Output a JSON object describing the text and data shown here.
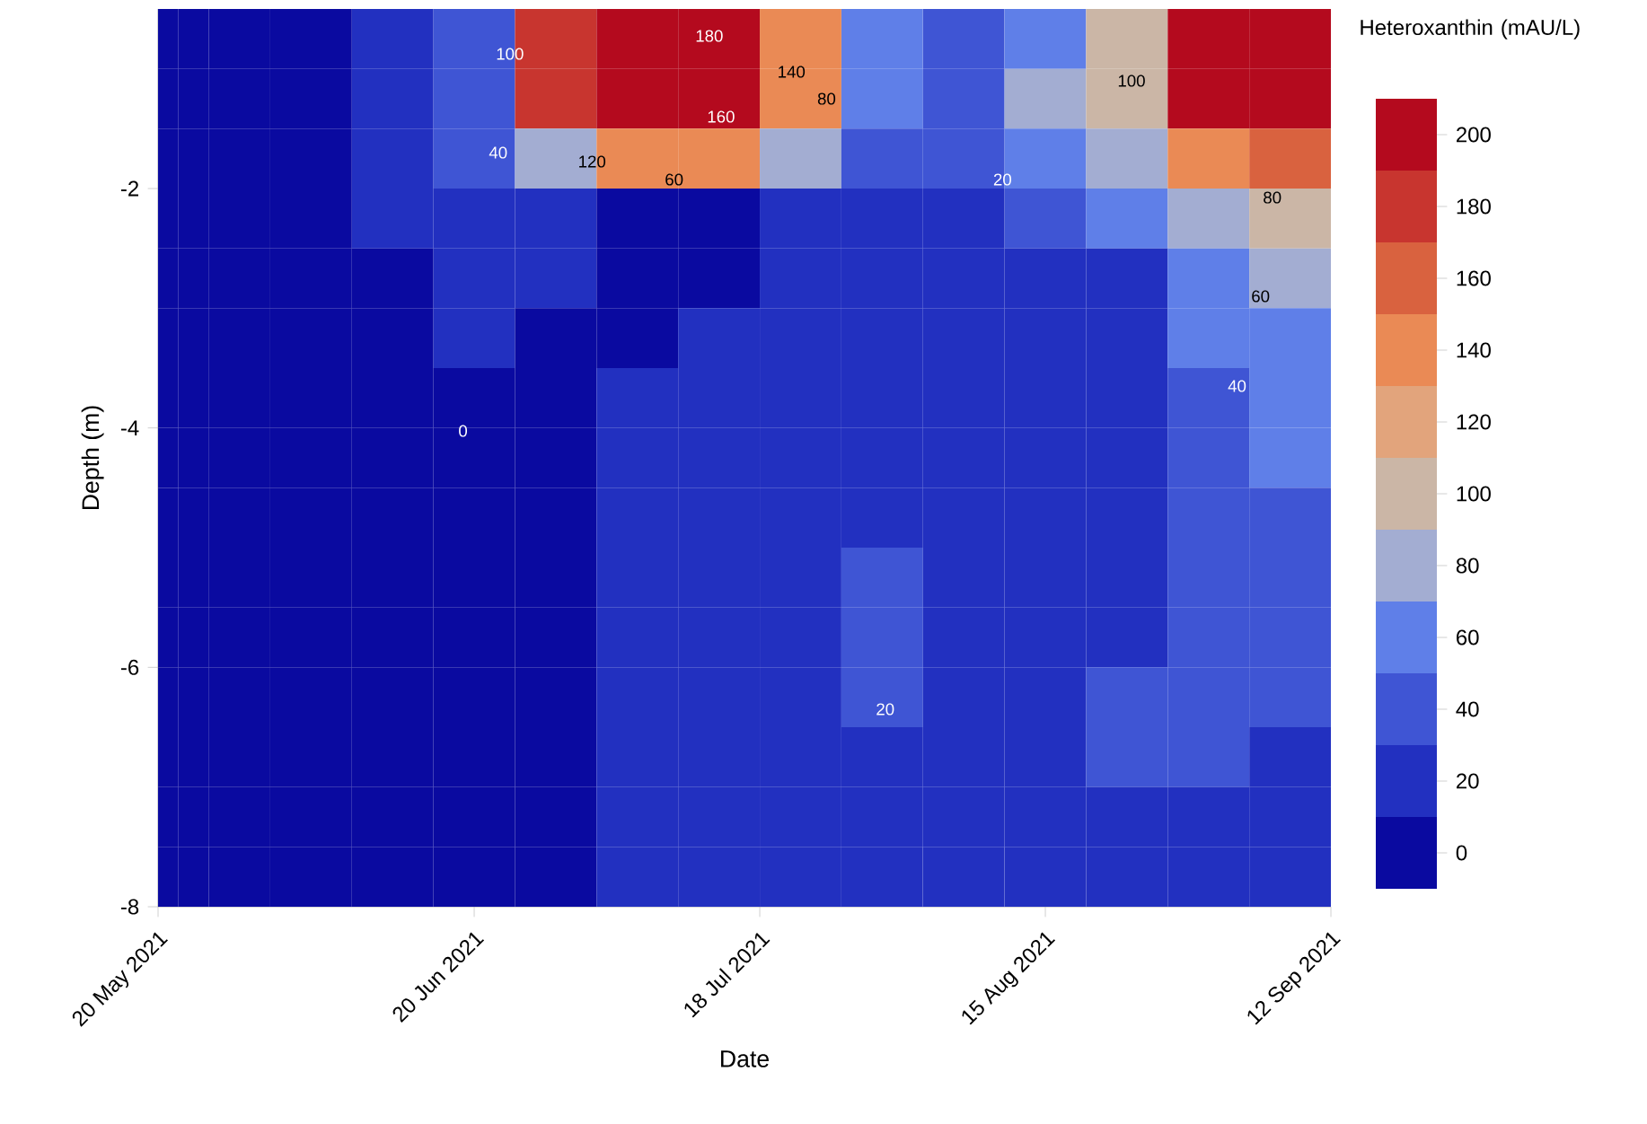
{
  "chart_data": {
    "type": "heatmap",
    "xlabel": "Date",
    "ylabel": "Depth (m)",
    "clabel": "Heteroxanthin (mAU/L)",
    "x": [
      "2021-05-21",
      "2021-05-23",
      "2021-05-27",
      "2021-06-04",
      "2021-06-12",
      "2021-06-20",
      "2021-06-28",
      "2021-07-06",
      "2021-07-14",
      "2021-07-22",
      "2021-07-30",
      "2021-08-07",
      "2021-08-15",
      "2021-08-23",
      "2021-08-31",
      "2021-09-08"
    ],
    "y": [
      -0.75,
      -1.25,
      -1.75,
      -2.25,
      -2.75,
      -3.25,
      -3.75,
      -4.25,
      -4.75,
      -5.25,
      -5.75,
      -6.25,
      -6.75,
      -7.25,
      -7.75
    ],
    "cells": [
      [
        0,
        0,
        0,
        0,
        20,
        40,
        170,
        210,
        200,
        130,
        60,
        45,
        60,
        100,
        190,
        210
      ],
      [
        0,
        0,
        0,
        0,
        20,
        40,
        170,
        210,
        210,
        130,
        60,
        40,
        70,
        95,
        190,
        210
      ],
      [
        0,
        0,
        0,
        0,
        20,
        30,
        80,
        130,
        130,
        80,
        40,
        30,
        50,
        80,
        130,
        160
      ],
      [
        0,
        0,
        0,
        0,
        20,
        20,
        20,
        0,
        0,
        20,
        20,
        20,
        30,
        60,
        85,
        90
      ],
      [
        0,
        0,
        0,
        0,
        0,
        20,
        20,
        0,
        0,
        20,
        20,
        20,
        20,
        20,
        55,
        70
      ],
      [
        0,
        0,
        0,
        0,
        0,
        20,
        0,
        0,
        20,
        20,
        20,
        20,
        20,
        20,
        50,
        60
      ],
      [
        0,
        0,
        0,
        0,
        0,
        0,
        0,
        20,
        20,
        20,
        20,
        20,
        20,
        20,
        45,
        50
      ],
      [
        0,
        0,
        0,
        0,
        0,
        0,
        0,
        20,
        20,
        20,
        20,
        20,
        20,
        20,
        45,
        50
      ],
      [
        0,
        0,
        0,
        0,
        0,
        0,
        0,
        20,
        20,
        20,
        20,
        20,
        20,
        20,
        45,
        45
      ],
      [
        0,
        0,
        0,
        0,
        0,
        0,
        0,
        20,
        20,
        20,
        30,
        20,
        20,
        20,
        45,
        45
      ],
      [
        0,
        0,
        0,
        0,
        0,
        0,
        0,
        20,
        20,
        20,
        30,
        20,
        20,
        20,
        45,
        45
      ],
      [
        0,
        0,
        0,
        0,
        0,
        0,
        0,
        20,
        20,
        20,
        30,
        20,
        20,
        40,
        45,
        40
      ],
      [
        0,
        0,
        0,
        0,
        0,
        0,
        0,
        20,
        20,
        20,
        20,
        20,
        20,
        40,
        40,
        20
      ],
      [
        0,
        0,
        0,
        0,
        0,
        0,
        0,
        20,
        20,
        20,
        20,
        20,
        20,
        20,
        20,
        20
      ],
      [
        0,
        0,
        0,
        0,
        0,
        0,
        0,
        20,
        20,
        20,
        20,
        20,
        20,
        20,
        20,
        20
      ]
    ],
    "xlim": [
      "2021-05-20",
      "2021-09-12"
    ],
    "xticks": [
      {
        "value": "2021-05-20",
        "label": "20 May 2021"
      },
      {
        "value": "2021-06-20",
        "label": "20 Jun 2021"
      },
      {
        "value": "2021-07-18",
        "label": "18 Jul 2021"
      },
      {
        "value": "2021-08-15",
        "label": "15 Aug 2021"
      },
      {
        "value": "2021-09-12",
        "label": "12 Sep 2021"
      }
    ],
    "ylim": [
      -8,
      -0.5
    ],
    "yticks": [
      -8,
      -6,
      -4,
      -2
    ],
    "clim": [
      -10,
      210
    ],
    "cticks": [
      0,
      20,
      40,
      60,
      80,
      100,
      120,
      140,
      160,
      180,
      200
    ],
    "annotations": [
      "100",
      "180",
      "140",
      "160",
      "80",
      "120",
      "60",
      "40",
      "20",
      "100",
      "80",
      "60",
      "40",
      "0",
      "20"
    ]
  }
}
